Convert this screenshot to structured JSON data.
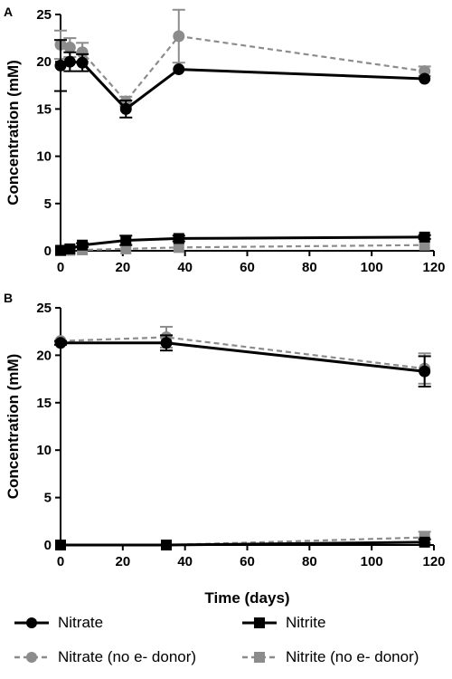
{
  "chart_data": [
    {
      "panel": "A",
      "type": "line",
      "ylabel": "Concentration (mM)",
      "xlabel": "",
      "xlim": [
        0,
        120
      ],
      "ylim": [
        0,
        25
      ],
      "xticks": [
        0,
        20,
        40,
        60,
        80,
        100,
        120
      ],
      "yticks": [
        0,
        5,
        10,
        15,
        20,
        25
      ],
      "series": [
        {
          "name": "Nitrate (no e- donor)",
          "marker": "circle",
          "color": "#8c8c8c",
          "dashed": true,
          "points": [
            {
              "x": 0,
              "y": 21.8,
              "err": 1.5
            },
            {
              "x": 3,
              "y": 21.5,
              "err": 1.0
            },
            {
              "x": 7,
              "y": 21.0,
              "err": 1.0
            },
            {
              "x": 21,
              "y": 15.8,
              "err": 0.5
            },
            {
              "x": 38,
              "y": 22.7,
              "err": 2.8
            },
            {
              "x": 117,
              "y": 19.0,
              "err": 0.5
            }
          ]
        },
        {
          "name": "Nitrate",
          "marker": "circle",
          "color": "#000000",
          "dashed": false,
          "points": [
            {
              "x": 0,
              "y": 19.6,
              "err": 2.7
            },
            {
              "x": 3,
              "y": 20.0,
              "err": 1.0
            },
            {
              "x": 7,
              "y": 19.9,
              "err": 0.9
            },
            {
              "x": 21,
              "y": 15.0,
              "err": 0.9
            },
            {
              "x": 38,
              "y": 19.2,
              "err": 0
            },
            {
              "x": 117,
              "y": 18.2,
              "err": 0
            }
          ]
        },
        {
          "name": "Nitrite (no e- donor)",
          "marker": "square",
          "color": "#8c8c8c",
          "dashed": true,
          "points": [
            {
              "x": 0,
              "y": 0.0,
              "err": 0
            },
            {
              "x": 3,
              "y": 0.05,
              "err": 0
            },
            {
              "x": 7,
              "y": 0.1,
              "err": 0
            },
            {
              "x": 21,
              "y": 0.2,
              "err": 0
            },
            {
              "x": 38,
              "y": 0.35,
              "err": 0
            },
            {
              "x": 117,
              "y": 0.6,
              "err": 0
            }
          ]
        },
        {
          "name": "Nitrite",
          "marker": "square",
          "color": "#000000",
          "dashed": false,
          "points": [
            {
              "x": 0,
              "y": 0.05,
              "err": 0
            },
            {
              "x": 3,
              "y": 0.2,
              "err": 0
            },
            {
              "x": 7,
              "y": 0.6,
              "err": 0.2
            },
            {
              "x": 21,
              "y": 1.1,
              "err": 0.5
            },
            {
              "x": 38,
              "y": 1.3,
              "err": 0.3
            },
            {
              "x": 117,
              "y": 1.45,
              "err": 0.2
            }
          ]
        }
      ]
    },
    {
      "panel": "B",
      "type": "line",
      "ylabel": "Concentration (mM)",
      "xlabel": "Time (days)",
      "xlim": [
        0,
        120
      ],
      "ylim": [
        0,
        25
      ],
      "xticks": [
        0,
        20,
        40,
        60,
        80,
        100,
        120
      ],
      "yticks": [
        0,
        5,
        10,
        15,
        20,
        25
      ],
      "series": [
        {
          "name": "Nitrate (no e- donor)",
          "marker": "circle",
          "color": "#8c8c8c",
          "dashed": true,
          "points": [
            {
              "x": 0,
              "y": 21.5,
              "err": 0
            },
            {
              "x": 34,
              "y": 21.9,
              "err": 1.1
            },
            {
              "x": 117,
              "y": 18.6,
              "err": 1.6
            }
          ]
        },
        {
          "name": "Nitrate",
          "marker": "circle",
          "color": "#000000",
          "dashed": false,
          "points": [
            {
              "x": 0,
              "y": 21.3,
              "err": 0.2
            },
            {
              "x": 34,
              "y": 21.3,
              "err": 0.8
            },
            {
              "x": 117,
              "y": 18.3,
              "err": 1.6
            }
          ]
        },
        {
          "name": "Nitrite (no e- donor)",
          "marker": "square",
          "color": "#8c8c8c",
          "dashed": true,
          "points": [
            {
              "x": 0,
              "y": 0.0,
              "err": 0
            },
            {
              "x": 34,
              "y": 0.0,
              "err": 0
            },
            {
              "x": 117,
              "y": 0.8,
              "err": 0.6
            }
          ]
        },
        {
          "name": "Nitrite",
          "marker": "square",
          "color": "#000000",
          "dashed": false,
          "points": [
            {
              "x": 0,
              "y": 0.0,
              "err": 0
            },
            {
              "x": 34,
              "y": 0.0,
              "err": 0
            },
            {
              "x": 117,
              "y": 0.3,
              "err": 0.3
            }
          ]
        }
      ]
    }
  ],
  "legend": {
    "nitrate": "Nitrate",
    "nitrite": "Nitrite",
    "nitrate_no_donor": "Nitrate (no e- donor)",
    "nitrite_no_donor": "Nitrite (no e- donor)"
  }
}
